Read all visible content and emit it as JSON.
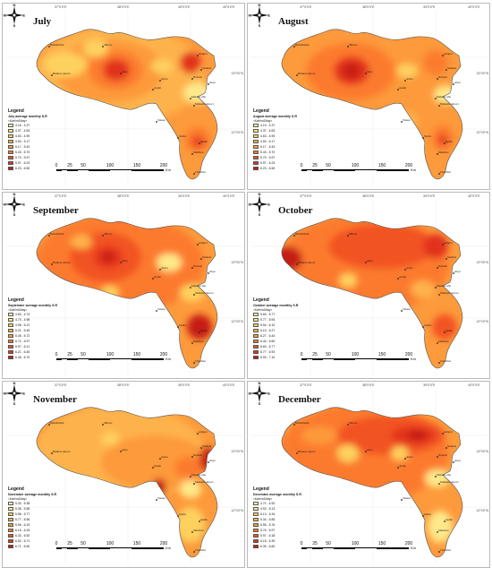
{
  "figure": {
    "legend_title": "Legend",
    "unit_label": "<Kwh/m2/day>",
    "scale_ticks": [
      "0",
      "25",
      "50",
      "100",
      "150",
      "200"
    ],
    "scale_unit": "Km",
    "compass": {
      "n": "N",
      "s": "S",
      "e": "E",
      "w": "W"
    },
    "lon_labels": [
      "37°0'0\"E",
      "38°0'0\"E",
      "39°0'0\"E",
      "40°0'0\"E"
    ],
    "lat_labels": [
      "13°0'0\"N",
      "12°0'0\"N"
    ],
    "places": [
      "Bethelhemn",
      "Humera airport",
      "Shiraro",
      "Ansa",
      "Adwa",
      "Axum",
      "Adigrat",
      "Nebelet",
      "Senkata",
      "Abye",
      "Maikelle airport",
      "Mekelle ubu",
      "Tekeze",
      "Samre",
      "Maichew",
      "Quiha",
      "Chechhet"
    ]
  },
  "panels": [
    {
      "month": "July",
      "legend_subtitle": "July average monthly S.R",
      "classes": [
        "4.16 - 4.37",
        "4.37 - 4.63",
        "4.63 - 4.90",
        "4.90 - 5.17",
        "5.17 - 5.43",
        "5.43 - 5.70",
        "5.70 - 5.97",
        "5.97 - 6.23",
        "6.23 - 6.50"
      ],
      "colors": [
        "#ffffb2",
        "#fee98a",
        "#fed15f",
        "#feb24c",
        "#fd9a3b",
        "#fc7a2e",
        "#f25323",
        "#e2321d",
        "#c51b14"
      ]
    },
    {
      "month": "August",
      "legend_subtitle": "August average monthly S.R",
      "classes": [
        "4.10 - 4.37",
        "4.37 - 4.63",
        "4.63 - 4.90",
        "4.90 - 5.17",
        "5.17 - 5.43",
        "5.43 - 5.70",
        "5.70 - 5.97",
        "5.97 - 6.23",
        "6.23 - 6.50"
      ],
      "colors": [
        "#ffffb2",
        "#fee98a",
        "#fed15f",
        "#feb24c",
        "#fd9a3b",
        "#fc7a2e",
        "#f25323",
        "#e2321d",
        "#c51b14"
      ]
    },
    {
      "month": "September",
      "legend_subtitle": "September average monthly S.R",
      "classes": [
        "4.50 - 4.74",
        "4.74 - 4.98",
        "4.98 - 5.21",
        "5.21 - 5.45",
        "5.45 - 5.72",
        "5.72 - 5.97",
        "5.97 - 6.21",
        "6.21 - 6.45",
        "6.45 - 6.70"
      ],
      "colors": [
        "#ffffb2",
        "#fee98a",
        "#fed15f",
        "#feb24c",
        "#fd9a3b",
        "#fc7a2e",
        "#f25323",
        "#e2321d",
        "#c51b14"
      ]
    },
    {
      "month": "October",
      "legend_subtitle": "October average monthly S.R",
      "classes": [
        "5.60 - 5.77",
        "5.77 - 5.94",
        "5.94 - 6.10",
        "6.10 - 6.27",
        "6.27 - 6.44",
        "6.44 - 6.60",
        "6.60 - 6.77",
        "6.77 - 6.93",
        "6.93 - 7.10"
      ],
      "colors": [
        "#ffffb2",
        "#fee98a",
        "#fed15f",
        "#feb24c",
        "#fd9a3b",
        "#fc7a2e",
        "#f25323",
        "#e2321d",
        "#c51b14"
      ]
    },
    {
      "month": "November",
      "legend_subtitle": "November average monthly S.R",
      "classes": [
        "5.30 - 5.38",
        "5.38 - 5.58",
        "5.58 - 5.77",
        "5.77 - 5.96",
        "5.96 - 6.15",
        "6.15 - 6.33",
        "6.33 - 6.52",
        "6.52 - 6.71",
        "6.71 - 6.90"
      ],
      "colors": [
        "#ffffb2",
        "#fee98a",
        "#fed15f",
        "#feb24c",
        "#fd9a3b",
        "#fc7a2e",
        "#f25323",
        "#e2321d",
        "#c51b14"
      ]
    },
    {
      "month": "December",
      "legend_subtitle": "December average monthly S.R",
      "classes": [
        "4.71 - 4.92",
        "4.92 - 5.13",
        "5.13 - 5.34",
        "5.34 - 5.55",
        "5.55 - 5.76",
        "5.76 - 5.97",
        "5.97 - 6.18",
        "6.18 - 6.39",
        "6.39 - 6.60"
      ],
      "colors": [
        "#ffffb2",
        "#fee98a",
        "#fed15f",
        "#feb24c",
        "#fd9a3b",
        "#fc7a2e",
        "#f25323",
        "#e2321d",
        "#c51b14"
      ]
    }
  ]
}
